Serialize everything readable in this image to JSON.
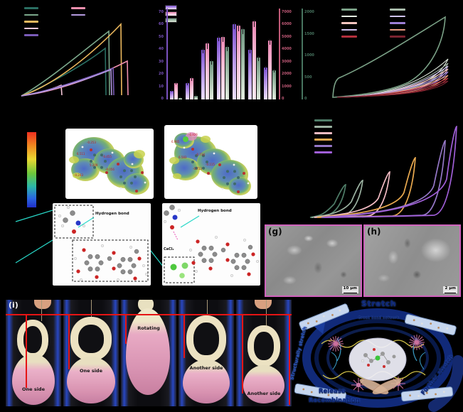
{
  "figure": {
    "background": "#000000",
    "note": "multi-panel paper figure; panel letters a-f and all plot axis/legend text are printed in black on the black page background and are not legible"
  },
  "colors": {
    "panel_a_col1": [
      "#2a6e62",
      "#7ca98c",
      "#edb95e",
      "#f6c7d8",
      "#7a5cb8"
    ],
    "panel_a_col2": [
      "#ee8fae",
      "#b49ae0"
    ],
    "panel_c_col1": [
      "#7ba287",
      "#e4efe2",
      "#f6c5c0",
      "#cfc0ee",
      "#b5303d"
    ],
    "panel_c_col2": [
      "#a9bcab",
      "#cfc3ec",
      "#9d7fd6",
      "#e89a82",
      "#7c2430"
    ],
    "panel_f": [
      "#4f7d68",
      "#9cb3a2",
      "#f3bcc4",
      "#e9a94f",
      "#9678c8",
      "#a05fd8"
    ],
    "panel_b_legend": [
      "linear-gradient(180deg,#7a4fd0 0%,#b592e8 45%,#efe2fc 100%)",
      "linear-gradient(180deg,#ee86b4 0%,#f8c4da 50%,#fdeaf2 100%)",
      "linear-gradient(180deg,#6e9580 0%,#a8c2ae 50%,#e4ecdf 100%)"
    ],
    "sem_border": "#cf62bc",
    "red_overlay": "#e61414",
    "cyan_arrow": "#28d8c8"
  },
  "chart_data": [
    {
      "id": "a",
      "type": "line",
      "note": "tensile curves; axes unlabeled (black-on-black). Values normalized 0-1.",
      "series": [
        {
          "name": "teal",
          "color": "#2a6e62",
          "break_strain": 0.66,
          "peak_stress": 0.52
        },
        {
          "name": "sage",
          "color": "#7ca98c",
          "break_strain": 0.69,
          "peak_stress": 0.72
        },
        {
          "name": "amber",
          "color": "#edb95e",
          "break_strain": 0.78,
          "peak_stress": 0.78
        },
        {
          "name": "light-pink",
          "color": "#f6c7d8",
          "break_strain": 0.33,
          "peak_stress": 0.12
        },
        {
          "name": "pink",
          "color": "#ee8fae",
          "break_strain": 0.83,
          "peak_stress": 0.4
        },
        {
          "name": "purple",
          "color": "#7a5cb8",
          "break_strain": 0.73,
          "peak_stress": 0.31
        },
        {
          "name": "light-purple",
          "color": "#b49ae0",
          "break_strain": 0.71,
          "peak_stress": 0.3
        }
      ]
    },
    {
      "id": "b",
      "type": "bar",
      "categories": [
        "",
        "",
        "",
        "",
        "",
        "",
        ""
      ],
      "note": "7 groups x 3 series, triple y-axes; category labels not legible",
      "series": [
        {
          "name": "purple",
          "axis_color": "#7b52c0",
          "axis_max": 70,
          "axis_ticks": [
            0,
            10,
            20,
            30,
            40,
            50,
            60,
            70
          ],
          "css_gradient": "linear-gradient(180deg,#7a4fd0 0%,#b592e8 45%,#efe2fc 100%)",
          "values": [
            7,
            13,
            40,
            50,
            61,
            40,
            26
          ],
          "errors": [
            1,
            1.5,
            2,
            2,
            2.5,
            2,
            1.5
          ]
        },
        {
          "name": "pink",
          "axis_color": "#c25a78",
          "axis_max": 7000,
          "axis_ticks": [
            0,
            1000,
            2000,
            3000,
            4000,
            5000,
            6000,
            7000
          ],
          "css_gradient": "linear-gradient(180deg,#ee86b4 0%,#f8c4da 50%,#fdeaf2 100%)",
          "values": [
            1300,
            1700,
            4550,
            5050,
            5950,
            6300,
            4750
          ],
          "errors": [
            120,
            160,
            280,
            260,
            300,
            280,
            240
          ]
        },
        {
          "name": "green",
          "axis_color": "#47745f",
          "axis_max": 2000,
          "axis_ticks": [
            0,
            500,
            1000,
            1500,
            2000
          ],
          "css_gradient": "linear-gradient(180deg,#6e9580 0%,#a8c2ae 50%,#e4ecdf 100%)",
          "values": [
            30,
            80,
            880,
            1210,
            1630,
            960,
            670
          ],
          "errors": [
            15,
            25,
            55,
            65,
            75,
            55,
            45
          ]
        }
      ]
    },
    {
      "id": "c",
      "type": "line-cyclic",
      "note": "loading-unloading hysteresis loops, normalized peaks",
      "series": [
        {
          "color": "#7ba287",
          "peak": 0.93
        },
        {
          "color": "#e4efe2",
          "peak": 0.42
        },
        {
          "color": "#a9bcab",
          "peak": 0.37
        },
        {
          "color": "#cfc0ee",
          "peak": 0.34
        },
        {
          "color": "#f6c5c0",
          "peak": 0.31
        },
        {
          "color": "#9d7fd6",
          "peak": 0.28
        },
        {
          "color": "#e89a82",
          "peak": 0.24
        },
        {
          "color": "#b5303d",
          "peak": 0.21
        },
        {
          "color": "#7c2430",
          "peak": 0.18
        }
      ]
    },
    {
      "id": "f",
      "type": "line-cyclic",
      "note": "successive cyclic loops at increasing strain, normalized",
      "series": [
        {
          "color": "#4f7d68",
          "peak_strain": 0.27,
          "peak_stress": 0.31
        },
        {
          "color": "#9cb3a2",
          "peak_strain": 0.37,
          "peak_stress": 0.35
        },
        {
          "color": "#f3bcc4",
          "peak_strain": 0.54,
          "peak_stress": 0.43
        },
        {
          "color": "#e9a94f",
          "peak_strain": 0.7,
          "peak_stress": 0.57
        },
        {
          "color": "#9678c8",
          "peak_strain": 0.89,
          "peak_stress": 0.73
        },
        {
          "color": "#a05fd8",
          "peak_strain": 0.96,
          "peak_stress": 0.87
        }
      ]
    }
  ],
  "esp": {
    "colorbar_top": "#f03020",
    "colorbar_bottom": "#2030c8",
    "map1_values": [
      "6.511",
      "-0.253",
      "5.209",
      "-0.056",
      "-0.243",
      "-0.455"
    ],
    "map2_values": [
      "6.965",
      "-0.826",
      "6.583",
      "-0.734",
      "-0.115",
      "-0.713"
    ]
  },
  "hbond": {
    "label": "Hydrogen bond",
    "salt_label": "CaCl₂"
  },
  "sem": {
    "g_letter": "(g)",
    "h_letter": "(h)",
    "g_scale": "10 μm",
    "h_scale": "2 μm"
  },
  "photos": {
    "letter": "(i)",
    "labels": [
      "One side",
      "One side",
      "Rotating",
      "Another side",
      "Another side"
    ]
  },
  "schematic": {
    "top": "Stretch",
    "inner": "Break bond network",
    "right": "Further stretch",
    "bottom1": "Release",
    "bottom2": "Recombination",
    "left": "Structurally stretch"
  }
}
